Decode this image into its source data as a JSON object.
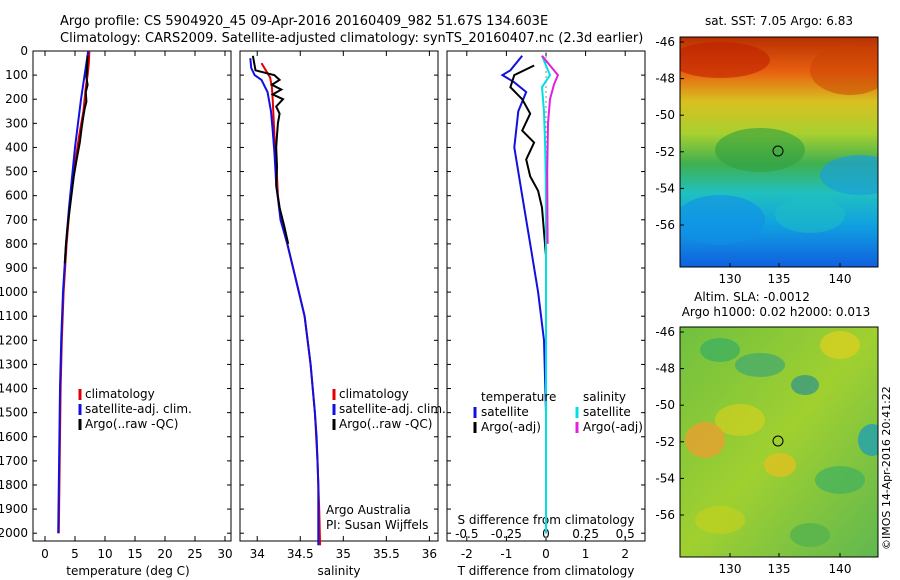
{
  "header": {
    "title_line1": "Argo profile: CS 5904920_45 09-Apr-2016 20160409_982 51.67S 134.603E",
    "title_line2": "Climatology: CARS2009. Satellite-adjusted climatology: synTS_20160407.nc (2.3d earlier)"
  },
  "colors": {
    "climatology": "#e00000",
    "satellite": "#1010e0",
    "argo": "#000000",
    "sal_satellite": "#00e0e0",
    "sal_argo": "#e020e0"
  },
  "chart_data": [
    {
      "type": "line",
      "panel": "temperature",
      "xlabel": "temperature (deg C)",
      "xlim": [
        -2,
        31
      ],
      "xticks": [
        0,
        5,
        10,
        15,
        20,
        25,
        30
      ],
      "ylim": [
        2050,
        0
      ],
      "yticks": [
        0,
        100,
        200,
        300,
        400,
        500,
        600,
        700,
        800,
        900,
        1000,
        1100,
        1200,
        1300,
        1400,
        1500,
        1600,
        1700,
        1800,
        1900,
        2000
      ],
      "legend": [
        "climatology",
        "satellite-adj. clim.",
        "Argo(..raw -QC)"
      ],
      "series": [
        {
          "name": "climatology",
          "color": "#e00000",
          "points": [
            [
              7.4,
              0
            ],
            [
              7.3,
              50
            ],
            [
              7.1,
              100
            ],
            [
              6.8,
              150
            ],
            [
              6.4,
              250
            ],
            [
              5.7,
              350
            ],
            [
              4.8,
              500
            ],
            [
              4.1,
              650
            ],
            [
              3.6,
              800
            ],
            [
              3.1,
              1000
            ],
            [
              2.8,
              1200
            ],
            [
              2.6,
              1400
            ],
            [
              2.5,
              1600
            ],
            [
              2.4,
              1800
            ],
            [
              2.3,
              2000
            ]
          ]
        },
        {
          "name": "satellite-adj. clim.",
          "color": "#1010e0",
          "points": [
            [
              7.2,
              0
            ],
            [
              6.6,
              100
            ],
            [
              6.0,
              200
            ],
            [
              5.5,
              300
            ],
            [
              5.0,
              400
            ],
            [
              4.6,
              500
            ],
            [
              4.0,
              650
            ],
            [
              3.5,
              800
            ],
            [
              3.0,
              1000
            ],
            [
              2.7,
              1200
            ],
            [
              2.5,
              1400
            ],
            [
              2.4,
              1600
            ],
            [
              2.3,
              1800
            ],
            [
              2.2,
              2000
            ]
          ]
        },
        {
          "name": "Argo(..raw -QC)",
          "color": "#000000",
          "points": [
            [
              7.1,
              20
            ],
            [
              7.0,
              80
            ],
            [
              6.9,
              110
            ],
            [
              7.1,
              140
            ],
            [
              6.8,
              170
            ],
            [
              6.9,
              210
            ],
            [
              6.6,
              240
            ],
            [
              6.4,
              270
            ],
            [
              6.1,
              320
            ],
            [
              5.8,
              380
            ],
            [
              5.2,
              460
            ],
            [
              4.8,
              520
            ],
            [
              4.3,
              620
            ],
            [
              3.8,
              720
            ],
            [
              3.5,
              800
            ],
            [
              3.3,
              880
            ]
          ]
        }
      ]
    },
    {
      "type": "line",
      "panel": "salinity",
      "xlabel": "salinity",
      "xlim": [
        33.8,
        36.1
      ],
      "xticks": [
        34,
        34.5,
        35,
        35.5,
        36
      ],
      "ylim": [
        2050,
        0
      ],
      "legend": [
        "climatology",
        "satellite-adj. clim.",
        "Argo(..raw -QC)"
      ],
      "annotation": [
        "Argo Australia",
        "PI: Susan Wijffels"
      ],
      "series": [
        {
          "name": "climatology",
          "color": "#e00000",
          "points": [
            [
              34.05,
              50
            ],
            [
              34.1,
              80
            ],
            [
              34.15,
              110
            ],
            [
              34.17,
              150
            ],
            [
              34.18,
              200
            ],
            [
              34.19,
              280
            ],
            [
              34.2,
              350
            ],
            [
              34.22,
              450
            ],
            [
              34.24,
              600
            ],
            [
              34.28,
              700
            ],
            [
              34.35,
              800
            ],
            [
              34.45,
              950
            ],
            [
              34.55,
              1100
            ],
            [
              34.62,
              1300
            ],
            [
              34.67,
              1500
            ],
            [
              34.7,
              1700
            ],
            [
              34.72,
              1900
            ],
            [
              34.73,
              2050
            ]
          ]
        },
        {
          "name": "satellite-adj. clim.",
          "color": "#1010e0",
          "points": [
            [
              33.92,
              30
            ],
            [
              33.93,
              70
            ],
            [
              33.97,
              100
            ],
            [
              34.05,
              120
            ],
            [
              34.12,
              170
            ],
            [
              34.16,
              250
            ],
            [
              34.18,
              330
            ],
            [
              34.2,
              420
            ],
            [
              34.22,
              550
            ],
            [
              34.27,
              700
            ],
            [
              34.35,
              800
            ],
            [
              34.45,
              950
            ],
            [
              34.55,
              1100
            ],
            [
              34.62,
              1300
            ],
            [
              34.67,
              1500
            ],
            [
              34.69,
              1600
            ],
            [
              34.7,
              1700
            ],
            [
              34.71,
              1800
            ],
            [
              34.71,
              2050
            ]
          ]
        },
        {
          "name": "Argo(..raw -QC)",
          "color": "#000000",
          "points": [
            [
              33.95,
              20
            ],
            [
              33.98,
              80
            ],
            [
              34.2,
              100
            ],
            [
              34.26,
              120
            ],
            [
              34.17,
              140
            ],
            [
              34.28,
              160
            ],
            [
              34.18,
              180
            ],
            [
              34.3,
              200
            ],
            [
              34.22,
              230
            ],
            [
              34.26,
              260
            ],
            [
              34.24,
              300
            ],
            [
              34.23,
              350
            ],
            [
              34.22,
              400
            ],
            [
              34.23,
              480
            ],
            [
              34.22,
              560
            ],
            [
              34.26,
              650
            ],
            [
              34.31,
              720
            ],
            [
              34.36,
              800
            ]
          ]
        }
      ]
    },
    {
      "type": "line",
      "panel": "difference",
      "xlabel": "T difference from climatology",
      "xlabel2": "S difference from climatology",
      "xlim": [
        -2.5,
        2.5
      ],
      "xticks": [
        -2,
        -1,
        0,
        1,
        2
      ],
      "sticks": [
        -0.5,
        -0.25,
        0,
        0.25,
        0.5
      ],
      "ylim": [
        2050,
        0
      ],
      "legend_headers": [
        "temperature",
        "salinity"
      ],
      "legend": [
        "satellite",
        "Argo(-adj)",
        "satellite",
        "Argo(-adj)"
      ],
      "series": [
        {
          "name": "satellite",
          "color": "#1010e0",
          "points": [
            [
              -0.6,
              20
            ],
            [
              -0.9,
              80
            ],
            [
              -1.1,
              100
            ],
            [
              -0.8,
              130
            ],
            [
              -0.5,
              170
            ],
            [
              -0.7,
              250
            ],
            [
              -0.8,
              400
            ],
            [
              -0.6,
              600
            ],
            [
              -0.4,
              800
            ],
            [
              -0.2,
              1000
            ],
            [
              -0.05,
              1200
            ],
            [
              0,
              1500
            ],
            [
              0,
              2000
            ]
          ]
        },
        {
          "name": "Argo(-adj)",
          "color": "#000000",
          "points": [
            [
              -0.3,
              60
            ],
            [
              -0.8,
              100
            ],
            [
              -0.9,
              150
            ],
            [
              -0.6,
              200
            ],
            [
              -0.4,
              260
            ],
            [
              -0.6,
              330
            ],
            [
              -0.3,
              380
            ],
            [
              -0.5,
              450
            ],
            [
              -0.4,
              520
            ],
            [
              -0.2,
              580
            ],
            [
              -0.1,
              650
            ],
            [
              0.0,
              850
            ]
          ]
        },
        {
          "name": "satellite",
          "color": "#00e0e0",
          "points": [
            [
              -0.1,
              20
            ],
            [
              0.0,
              60
            ],
            [
              0.1,
              100
            ],
            [
              -0.1,
              150
            ],
            [
              -0.05,
              250
            ],
            [
              -0.02,
              400
            ],
            [
              0,
              600
            ],
            [
              0,
              900
            ],
            [
              0,
              1500
            ],
            [
              0,
              2000
            ]
          ]
        },
        {
          "name": "Argo(-adj)",
          "color": "#e020e0",
          "points": [
            [
              -0.1,
              20
            ],
            [
              0.1,
              60
            ],
            [
              0.3,
              100
            ],
            [
              0.2,
              140
            ],
            [
              0.1,
              200
            ],
            [
              0.05,
              300
            ],
            [
              0.03,
              500
            ],
            [
              0.04,
              800
            ]
          ]
        }
      ]
    }
  ],
  "maps": {
    "sst": {
      "title": "sat. SST: 7.05 Argo: 6.83",
      "xticks": [
        "130",
        "135",
        "140"
      ],
      "yticks": [
        "-46",
        "-48",
        "-50",
        "-52",
        "-54",
        "-56"
      ]
    },
    "sla": {
      "title1": "Altim. SLA: -0.0012",
      "title2": "Argo h1000: 0.02 h2000: 0.013",
      "xticks": [
        "130",
        "135",
        "140"
      ],
      "yticks": [
        "-46",
        "-48",
        "-50",
        "-52",
        "-54",
        "-56"
      ]
    },
    "credit": "©IMOS 14-Apr-2016 20:41:22"
  }
}
